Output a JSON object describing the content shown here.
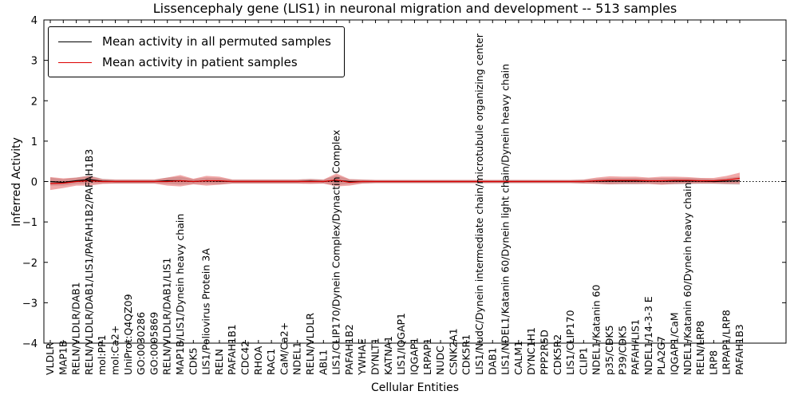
{
  "chart_data": {
    "type": "line",
    "title": "Lissencephaly gene (LIS1) in neuronal migration and development -- 513 samples",
    "xlabel": "Cellular Entities",
    "ylabel": "Inferred Activity",
    "ylim": [
      -4,
      4
    ],
    "yticks": [
      "4",
      "3",
      "2",
      "1",
      "0",
      "−1",
      "−2",
      "−3",
      "−4"
    ],
    "grid": false,
    "zero_line": true,
    "legend_position": "upper left",
    "categories": [
      "VLDLR",
      "MAP1B",
      "RELN/VLDLR/DAB1",
      "RELN/VLDLR/DAB1/LIS1/PAFAH1B2/PAFAH1B3",
      "mol:PP1",
      "mol:Ca2+",
      "UniProt:Q4QZ09",
      "GO:0030286",
      "GO:0005869",
      "RELN/VLDLR/DAB1/LIS1",
      "MAP1B/LIS1/Dynein heavy chain",
      "CDK5",
      "LIS1/Poliovirus Protein 3A",
      "RELN",
      "PAFAH1B1",
      "CDC42",
      "RHOA",
      "RAC1",
      "CaM/Ca2+",
      "NDEL1",
      "RELN/VLDLR",
      "ABL1",
      "LIS1/CLIP170/Dynein Complex/Dynactin Complex",
      "PAFAH1B2",
      "YWHAE",
      "DYNLT1",
      "KATNA1",
      "LIS1/IQGAP1",
      "IQGAP1",
      "LRPAP1",
      "NUDC",
      "CSNK2A1",
      "CDK5R1",
      "LIS1/NudC/Dynein intermediate chain/microtubule organizing center",
      "DAB1",
      "LIS1/NDEL1/Katanin 60/Dynein light chain/Dynein heavy chain",
      "CALM1",
      "DYNC1H1",
      "PPP2R5D",
      "CDK5R2",
      "LIS1/CLIP170",
      "CLIP1",
      "NDEL1/Katanin 60",
      "p35/CDK5",
      "P39/CDK5",
      "PAFAH/LIS1",
      "NDEL1/14-3-3 E",
      "PLA2G7",
      "IQGAP1/CaM",
      "NDEL1/Katanin 60/Dynein heavy chain",
      "RELN/LRP8",
      "LRP8",
      "LRPAP1/LRP8",
      "PAFAH1B3"
    ],
    "series": [
      {
        "name": "Mean activity in all permuted samples",
        "color": "#000000",
        "band_color": "rgba(120,120,120,0.30)",
        "values": [
          0.0,
          -0.02,
          0.02,
          0.05,
          0.01,
          0.0,
          0.0,
          0.0,
          0.0,
          0.02,
          0.02,
          0.0,
          0.02,
          0.01,
          0.0,
          0.0,
          0.0,
          0.0,
          0.0,
          0.0,
          0.01,
          0.0,
          0.03,
          0.0,
          0.0,
          0.0,
          0.0,
          0.0,
          0.0,
          0.0,
          0.0,
          0.0,
          0.0,
          0.0,
          0.0,
          0.0,
          0.0,
          0.0,
          0.0,
          0.0,
          0.0,
          0.0,
          0.01,
          0.01,
          0.01,
          0.01,
          0.01,
          0.01,
          0.01,
          0.01,
          0.01,
          0.0,
          0.01,
          0.02
        ],
        "band_halfwidth": [
          0.1,
          0.08,
          0.08,
          0.1,
          0.06,
          0.05,
          0.05,
          0.05,
          0.05,
          0.08,
          0.1,
          0.06,
          0.08,
          0.08,
          0.05,
          0.05,
          0.05,
          0.05,
          0.05,
          0.05,
          0.06,
          0.05,
          0.12,
          0.06,
          0.05,
          0.04,
          0.04,
          0.04,
          0.04,
          0.04,
          0.04,
          0.04,
          0.04,
          0.04,
          0.04,
          0.04,
          0.04,
          0.04,
          0.04,
          0.04,
          0.04,
          0.05,
          0.06,
          0.08,
          0.08,
          0.08,
          0.07,
          0.08,
          0.08,
          0.08,
          0.07,
          0.06,
          0.08,
          0.1
        ]
      },
      {
        "name": "Mean activity in patient samples",
        "color": "#dd0000",
        "band_color": "rgba(221,40,40,0.40)",
        "values": [
          -0.05,
          -0.04,
          0.0,
          0.02,
          0.0,
          0.0,
          0.0,
          0.0,
          0.0,
          0.0,
          0.02,
          0.0,
          0.02,
          0.02,
          0.0,
          0.0,
          0.0,
          0.0,
          0.0,
          0.0,
          0.0,
          0.0,
          0.04,
          -0.02,
          0.0,
          0.0,
          0.0,
          0.0,
          0.0,
          0.0,
          0.0,
          0.0,
          0.0,
          0.0,
          0.0,
          0.0,
          0.0,
          0.0,
          0.0,
          0.0,
          0.0,
          0.0,
          0.02,
          0.03,
          0.03,
          0.03,
          0.02,
          0.02,
          0.03,
          0.03,
          0.02,
          0.02,
          0.04,
          0.08
        ],
        "band_halfwidth": [
          0.16,
          0.12,
          0.1,
          0.12,
          0.06,
          0.05,
          0.05,
          0.05,
          0.05,
          0.1,
          0.14,
          0.07,
          0.12,
          0.1,
          0.05,
          0.05,
          0.05,
          0.05,
          0.05,
          0.05,
          0.06,
          0.05,
          0.16,
          0.08,
          0.05,
          0.04,
          0.04,
          0.04,
          0.04,
          0.04,
          0.04,
          0.04,
          0.04,
          0.04,
          0.04,
          0.04,
          0.04,
          0.04,
          0.04,
          0.04,
          0.04,
          0.05,
          0.08,
          0.1,
          0.09,
          0.09,
          0.08,
          0.1,
          0.09,
          0.08,
          0.07,
          0.07,
          0.1,
          0.14
        ]
      }
    ]
  }
}
